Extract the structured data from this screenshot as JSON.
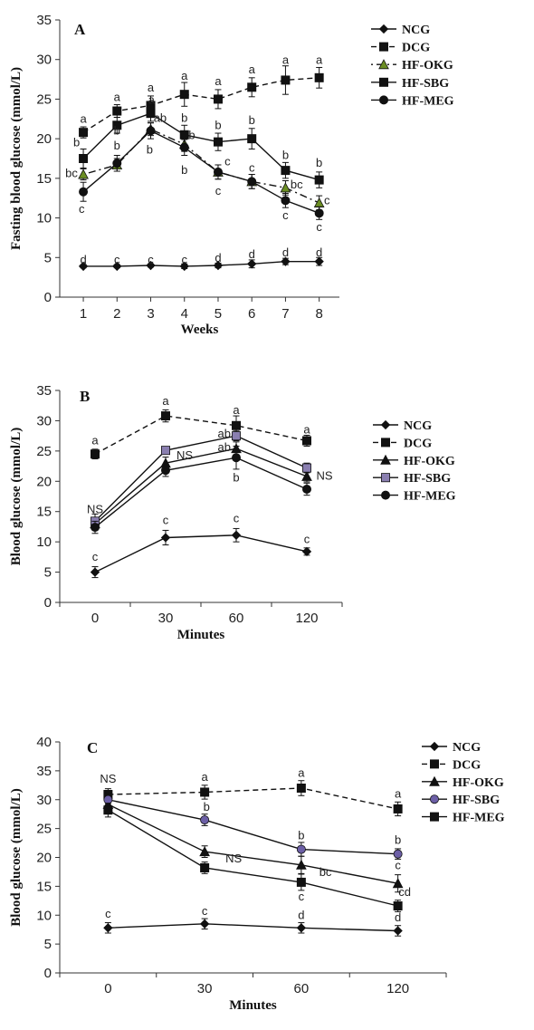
{
  "chart_data": [
    {
      "type": "line",
      "panel": "A",
      "xlabel": "Weeks",
      "ylabel": "Fasting blood glucose (mmol/L)",
      "x": [
        1,
        2,
        3,
        4,
        5,
        6,
        7,
        8
      ],
      "xlim": [
        0.3,
        8.6
      ],
      "ylim": [
        0,
        35
      ],
      "yticks": [
        0,
        5,
        10,
        15,
        20,
        25,
        30,
        35
      ],
      "xticks": [
        1,
        2,
        3,
        4,
        5,
        6,
        7,
        8
      ],
      "legend": "right",
      "series": [
        {
          "name": "NCG",
          "marker": "diamond",
          "dash": "solid",
          "fill": "#111111",
          "values": [
            3.9,
            3.9,
            4.0,
            3.9,
            4.0,
            4.2,
            4.5,
            4.5
          ],
          "err": [
            0.2,
            0.2,
            0.2,
            0.3,
            0.3,
            0.5,
            0.4,
            0.5
          ]
        },
        {
          "name": "DCG",
          "marker": "square",
          "dash": "dashed",
          "fill": "#111111",
          "values": [
            20.8,
            23.5,
            24.2,
            25.6,
            25.0,
            26.5,
            27.4,
            27.7
          ],
          "err": [
            0.7,
            0.8,
            1.2,
            1.5,
            1.2,
            1.2,
            1.8,
            1.3
          ]
        },
        {
          "name": "HF-OKG",
          "marker": "triangle",
          "dash": "dashdot",
          "fill": "#6b8e23",
          "values": [
            15.5,
            16.7,
            21.2,
            19.3,
            15.8,
            14.6,
            13.8,
            11.9
          ],
          "err": [
            0.7,
            0.8,
            0.8,
            0.9,
            0.9,
            0.9,
            0.9,
            0.9
          ]
        },
        {
          "name": "HF-SBG",
          "marker": "square",
          "dash": "solid",
          "fill": "#111111",
          "values": [
            17.5,
            21.7,
            23.2,
            20.5,
            19.6,
            20.0,
            16.0,
            14.8
          ],
          "err": [
            1.2,
            1.0,
            1.0,
            1.2,
            1.1,
            1.3,
            1.0,
            1.0
          ]
        },
        {
          "name": "HF-MEG",
          "marker": "circle",
          "dash": "solid",
          "fill": "#111111",
          "values": [
            13.3,
            16.9,
            21.0,
            18.9,
            15.8,
            14.6,
            12.2,
            10.6
          ],
          "err": [
            1.2,
            1.0,
            1.0,
            1.0,
            0.9,
            0.9,
            0.9,
            0.8
          ]
        }
      ],
      "annotations": [
        {
          "text": "a",
          "x": 1,
          "y": 22.5
        },
        {
          "text": "b",
          "x": 0.8,
          "y": 19.5
        },
        {
          "text": "bc",
          "x": 0.65,
          "y": 15.6
        },
        {
          "text": "c",
          "x": 0.95,
          "y": 11.1
        },
        {
          "text": "a",
          "x": 2,
          "y": 25.2
        },
        {
          "text": "b",
          "x": 2,
          "y": 21.0
        },
        {
          "text": "b",
          "x": 2,
          "y": 19.1
        },
        {
          "text": "a",
          "x": 3,
          "y": 26.4
        },
        {
          "text": "a",
          "x": 3.02,
          "y": 24.9
        },
        {
          "text": "ab",
          "x": 3.28,
          "y": 22.6
        },
        {
          "text": "b",
          "x": 2.97,
          "y": 18.6
        },
        {
          "text": "a",
          "x": 4,
          "y": 27.9
        },
        {
          "text": "b",
          "x": 4,
          "y": 22.6
        },
        {
          "text": "b",
          "x": 4.22,
          "y": 20.4
        },
        {
          "text": "b",
          "x": 4,
          "y": 16.0
        },
        {
          "text": "a",
          "x": 5,
          "y": 27.2
        },
        {
          "text": "b",
          "x": 5,
          "y": 21.7
        },
        {
          "text": "c",
          "x": 5.28,
          "y": 17.1
        },
        {
          "text": "c",
          "x": 5,
          "y": 13.4
        },
        {
          "text": "a",
          "x": 6,
          "y": 28.7
        },
        {
          "text": "b",
          "x": 6,
          "y": 22.3
        },
        {
          "text": "c",
          "x": 6,
          "y": 16.3
        },
        {
          "text": "a",
          "x": 7,
          "y": 29.9
        },
        {
          "text": "b",
          "x": 7,
          "y": 17.9
        },
        {
          "text": "bc",
          "x": 7.33,
          "y": 14.2
        },
        {
          "text": "c",
          "x": 7,
          "y": 10.3
        },
        {
          "text": "a",
          "x": 8,
          "y": 29.9
        },
        {
          "text": "b",
          "x": 8,
          "y": 16.9
        },
        {
          "text": "c",
          "x": 8.23,
          "y": 12.2
        },
        {
          "text": "c",
          "x": 8,
          "y": 8.8
        },
        {
          "text": "d",
          "x": 1,
          "y": 4.7
        },
        {
          "text": "c",
          "x": 2,
          "y": 4.7
        },
        {
          "text": "c",
          "x": 3,
          "y": 4.7
        },
        {
          "text": "c",
          "x": 4,
          "y": 4.7
        },
        {
          "text": "d",
          "x": 5,
          "y": 4.9
        },
        {
          "text": "d",
          "x": 6,
          "y": 5.4
        },
        {
          "text": "d",
          "x": 7,
          "y": 5.6
        },
        {
          "text": "d",
          "x": 8,
          "y": 5.6
        }
      ]
    },
    {
      "type": "line",
      "panel": "B",
      "xlabel": "Minutes",
      "ylabel": "Blood glucose (mmol/L)",
      "categories": [
        "0",
        "30",
        "60",
        "120"
      ],
      "ylim": [
        0,
        35
      ],
      "yticks": [
        0,
        5,
        10,
        15,
        20,
        25,
        30,
        35
      ],
      "legend": "right",
      "series": [
        {
          "name": "NCG",
          "marker": "diamond",
          "dash": "solid",
          "fill": "#111111",
          "values": [
            5.0,
            10.7,
            11.1,
            8.4
          ],
          "err": [
            0.9,
            1.2,
            1.1,
            0.6
          ]
        },
        {
          "name": "DCG",
          "marker": "square",
          "dash": "dashed",
          "fill": "#111111",
          "values": [
            24.5,
            30.8,
            29.2,
            26.7
          ],
          "err": [
            0.8,
            1.0,
            1.6,
            0.9
          ]
        },
        {
          "name": "HF-OKG",
          "marker": "triangle",
          "dash": "solid",
          "fill": "#111111",
          "values": [
            13.0,
            23.0,
            25.4,
            20.8
          ],
          "err": [
            0.9,
            1.0,
            1.1,
            0.9
          ]
        },
        {
          "name": "HF-SBG",
          "marker": "square",
          "dash": "solid",
          "fill": "#8a7fb0",
          "values": [
            13.4,
            25.1,
            27.5,
            22.2
          ],
          "err": [
            1.2,
            0.5,
            0.8,
            0.8
          ]
        },
        {
          "name": "HF-MEG",
          "marker": "circle",
          "dash": "solid",
          "fill": "#111111",
          "values": [
            12.4,
            21.8,
            23.9,
            18.7
          ],
          "err": [
            1.0,
            1.0,
            1.9,
            1.0
          ]
        }
      ],
      "annotations": [
        {
          "text": "a",
          "x": 0,
          "y": 26.7
        },
        {
          "text": "NS",
          "x": 0,
          "y": 15.3
        },
        {
          "text": "c",
          "x": 0,
          "y": 7.5
        },
        {
          "text": "a",
          "x": 1,
          "y": 33.2
        },
        {
          "text": "NS",
          "x": 1.27,
          "y": 24.2
        },
        {
          "text": "c",
          "x": 1,
          "y": 13.5
        },
        {
          "text": "a",
          "x": 2,
          "y": 31.7
        },
        {
          "text": "ab",
          "x": 1.83,
          "y": 27.8
        },
        {
          "text": "ab",
          "x": 1.83,
          "y": 25.6
        },
        {
          "text": "b",
          "x": 2,
          "y": 20.6
        },
        {
          "text": "c",
          "x": 2,
          "y": 13.8
        },
        {
          "text": "a",
          "x": 3,
          "y": 28.5
        },
        {
          "text": "NS",
          "x": 3.25,
          "y": 20.9
        },
        {
          "text": "c",
          "x": 3,
          "y": 10.4
        }
      ]
    },
    {
      "type": "line",
      "panel": "C",
      "xlabel": "Minutes",
      "ylabel": "Blood glucose (mmol/L)",
      "categories": [
        "0",
        "30",
        "60",
        "120"
      ],
      "ylim": [
        0,
        40
      ],
      "yticks": [
        0,
        5,
        10,
        15,
        20,
        25,
        30,
        35,
        40
      ],
      "legend": "right",
      "series": [
        {
          "name": "NCG",
          "marker": "diamond",
          "dash": "solid",
          "fill": "#111111",
          "values": [
            7.8,
            8.5,
            7.8,
            7.3
          ],
          "err": [
            0.9,
            0.9,
            0.9,
            0.9
          ]
        },
        {
          "name": "DCG",
          "marker": "square",
          "dash": "dashed",
          "fill": "#111111",
          "values": [
            30.9,
            31.3,
            32.0,
            28.4
          ],
          "err": [
            1.0,
            1.2,
            1.3,
            1.2
          ]
        },
        {
          "name": "HF-OKG",
          "marker": "triangle",
          "dash": "solid",
          "fill": "#111111",
          "values": [
            29.2,
            21.0,
            18.7,
            15.5
          ],
          "err": [
            1.2,
            1.0,
            1.5,
            1.5
          ]
        },
        {
          "name": "HF-SBG",
          "marker": "circle",
          "dash": "solid",
          "fill": "#6c5fa6",
          "values": [
            30.0,
            26.5,
            21.4,
            20.6
          ],
          "err": [
            1.0,
            1.0,
            1.2,
            0.9
          ]
        },
        {
          "name": "HF-MEG",
          "marker": "square",
          "dash": "solid",
          "fill": "#111111",
          "values": [
            28.2,
            18.2,
            15.7,
            11.6
          ],
          "err": [
            1.2,
            1.0,
            1.4,
            1.0
          ]
        }
      ],
      "annotations": [
        {
          "text": "NS",
          "x": 0,
          "y": 33.6
        },
        {
          "text": "c",
          "x": 0,
          "y": 10.2
        },
        {
          "text": "a",
          "x": 1,
          "y": 33.9
        },
        {
          "text": "b",
          "x": 1.02,
          "y": 28.7
        },
        {
          "text": "NS",
          "x": 1.3,
          "y": 19.8
        },
        {
          "text": "c",
          "x": 1,
          "y": 10.7
        },
        {
          "text": "a",
          "x": 2,
          "y": 34.6
        },
        {
          "text": "b",
          "x": 2,
          "y": 23.8
        },
        {
          "text": "bc",
          "x": 2.25,
          "y": 17.4
        },
        {
          "text": "c",
          "x": 2,
          "y": 13.2
        },
        {
          "text": "d",
          "x": 2,
          "y": 10.0
        },
        {
          "text": "a",
          "x": 3,
          "y": 31.0
        },
        {
          "text": "b",
          "x": 3,
          "y": 23.0
        },
        {
          "text": "c",
          "x": 3,
          "y": 18.6
        },
        {
          "text": "cd",
          "x": 3.07,
          "y": 14.0
        },
        {
          "text": "d",
          "x": 3,
          "y": 9.6
        }
      ]
    }
  ]
}
